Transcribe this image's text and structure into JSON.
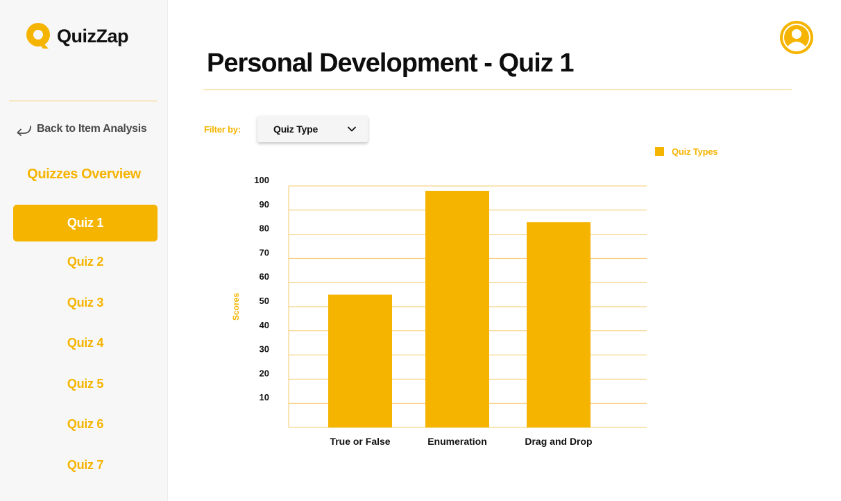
{
  "brand": {
    "name": "QuizZap"
  },
  "sidebar": {
    "back_label": "Back to Item Analysis",
    "section_title": "Quizzes Overview",
    "quizzes": [
      {
        "label": "Quiz 1",
        "active": true
      },
      {
        "label": "Quiz 2",
        "active": false
      },
      {
        "label": "Quiz 3",
        "active": false
      },
      {
        "label": "Quiz 4",
        "active": false
      },
      {
        "label": "Quiz 5",
        "active": false
      },
      {
        "label": "Quiz 6",
        "active": false
      },
      {
        "label": "Quiz 7",
        "active": false
      }
    ]
  },
  "header": {
    "title": "Personal Development - Quiz 1"
  },
  "filter": {
    "label": "Filter by:",
    "selected": "Quiz Type"
  },
  "icons": {
    "logo": "quizzap-logo-icon",
    "back": "back-arrow-icon",
    "dropdown": "chevron-down-icon",
    "user": "user-avatar-icon"
  },
  "colors": {
    "accent": "#f5b400",
    "text": "#111111",
    "sidebar_bg": "#f7f7f7",
    "divider": "#f5c96a"
  },
  "chart_data": {
    "type": "bar",
    "categories": [
      "True or False",
      "Enumeration",
      "Drag and Drop"
    ],
    "series": [
      {
        "name": "Quiz Types",
        "values": [
          55,
          98,
          85
        ]
      }
    ],
    "ylabel": "Scores",
    "xlabel": "",
    "yticks": [
      10,
      20,
      30,
      40,
      50,
      60,
      70,
      80,
      90,
      100
    ],
    "ylim": [
      0,
      100
    ],
    "grid": true,
    "legend_position": "top-right"
  }
}
